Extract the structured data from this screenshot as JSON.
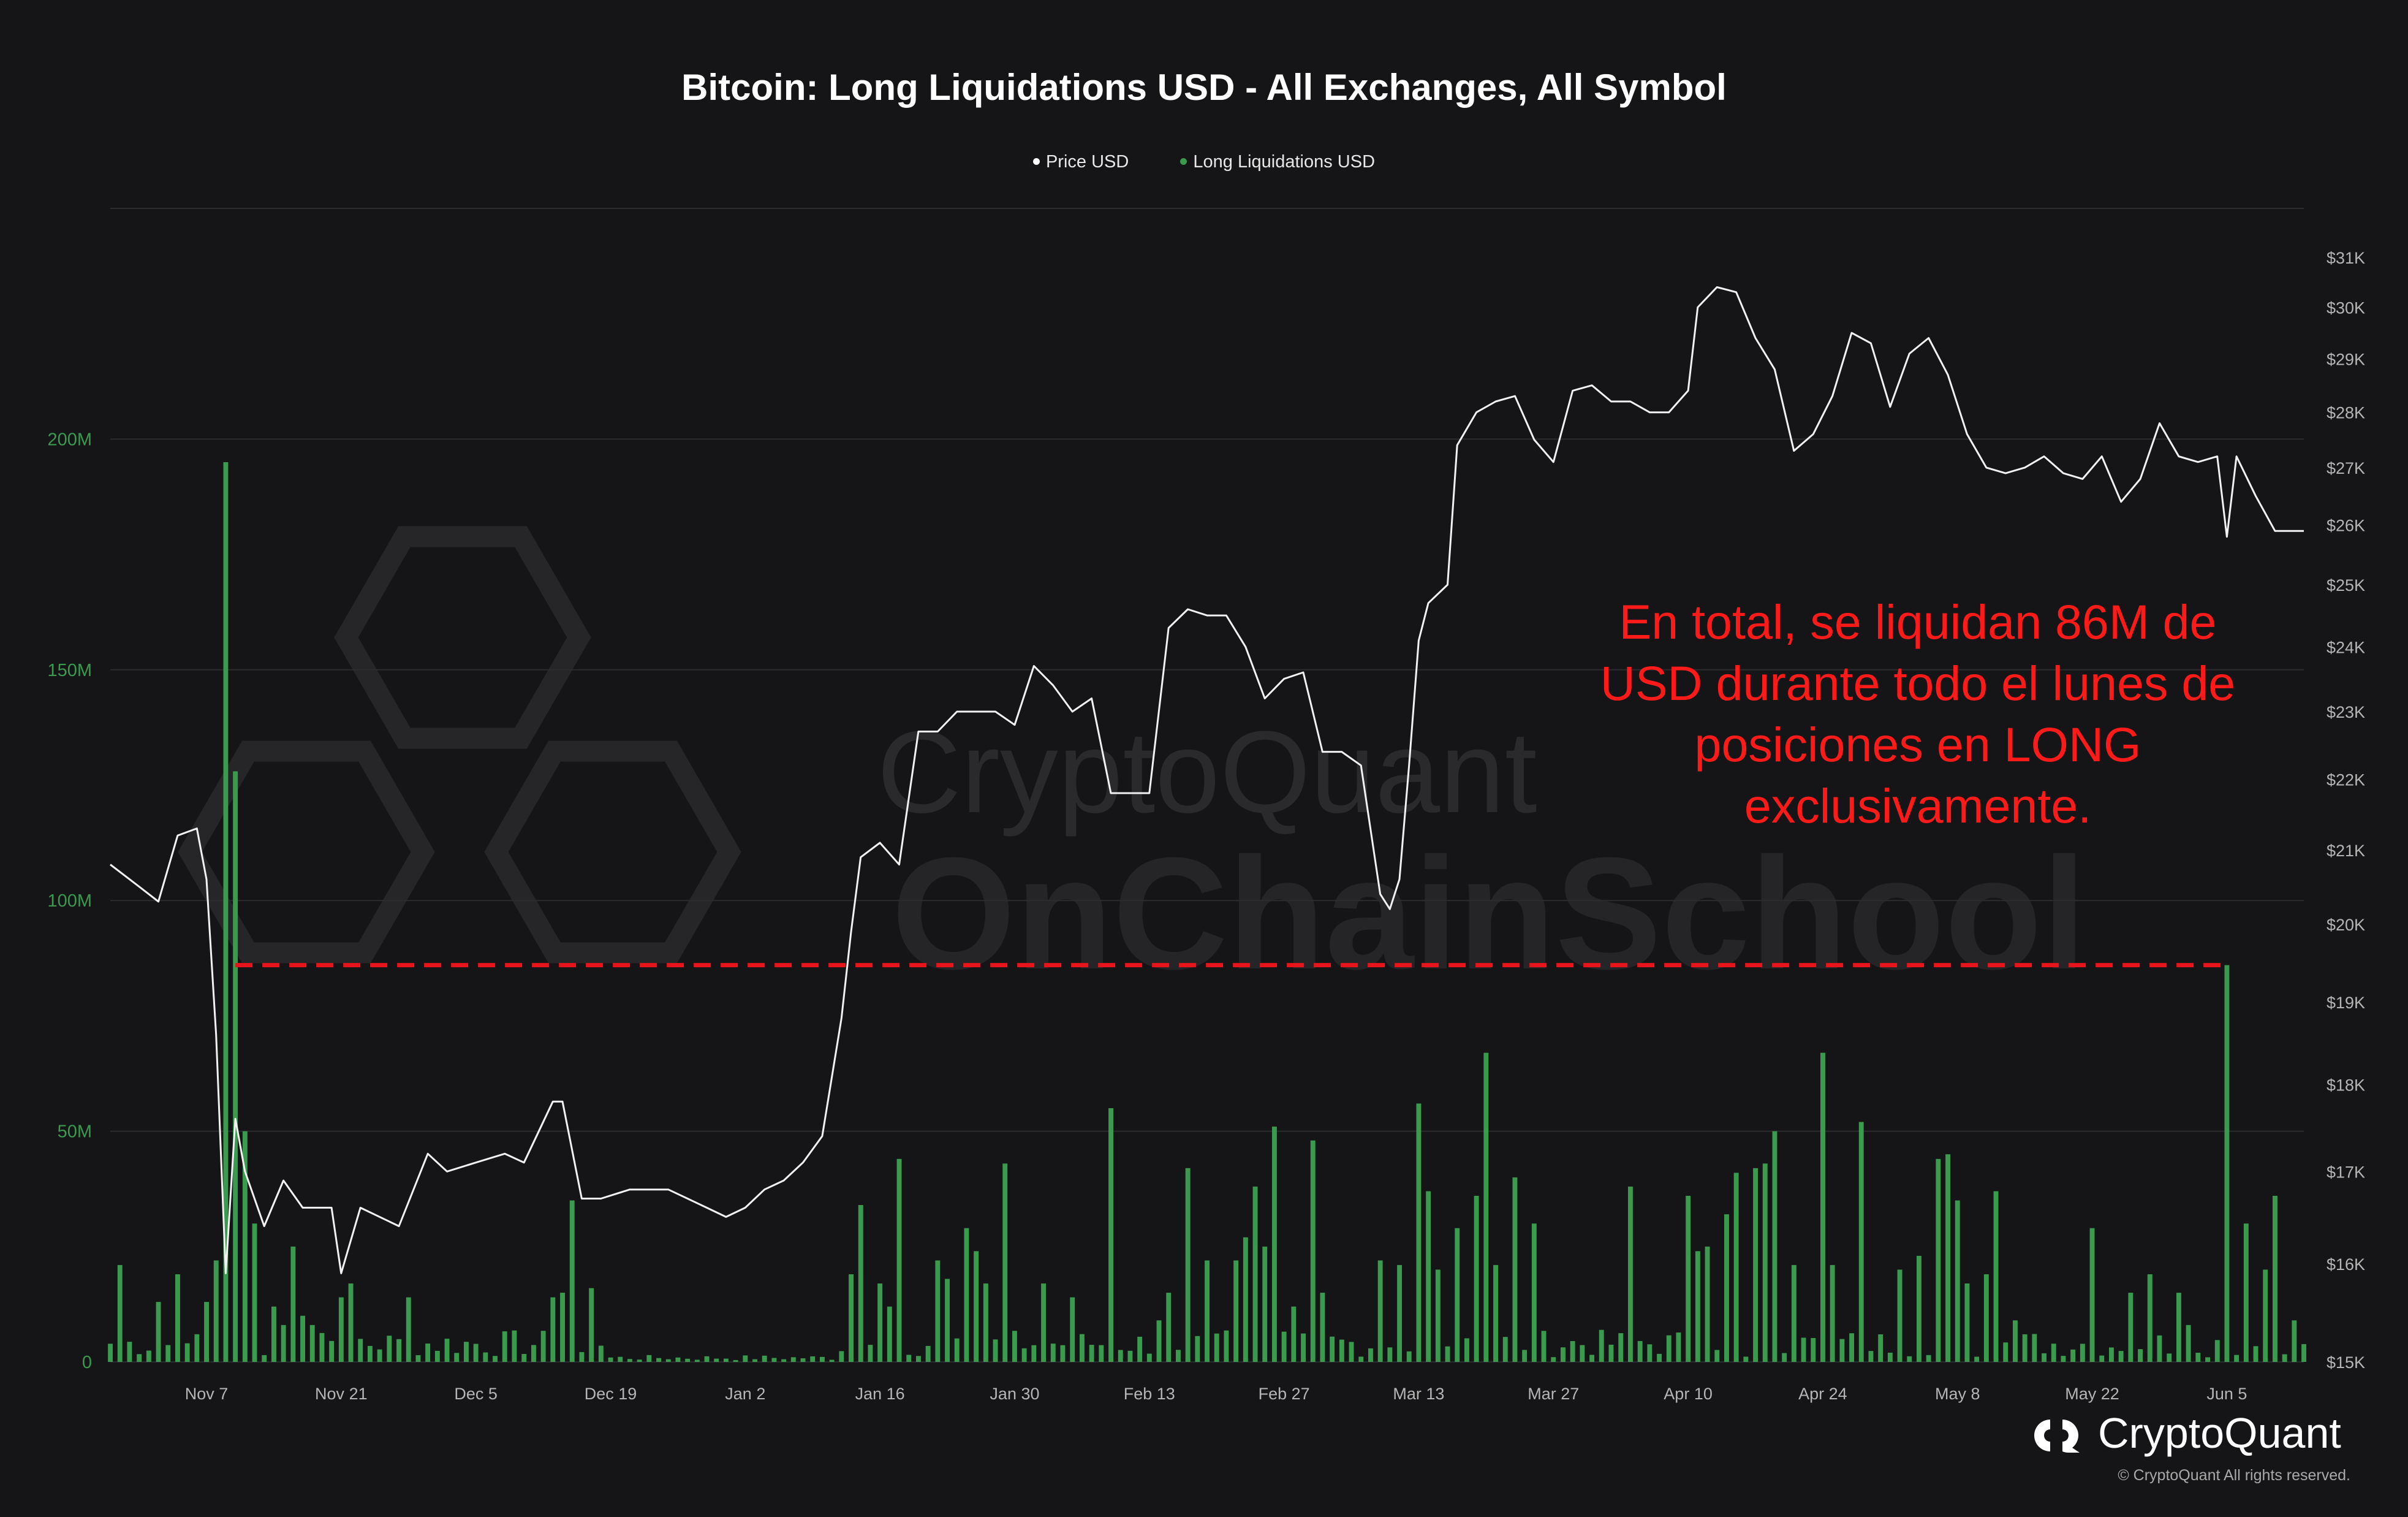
{
  "chart_data": {
    "type": "bar+line",
    "title": "Bitcoin: Long Liquidations USD - All Exchanges, All Symbol",
    "legend": [
      {
        "name": "Price USD",
        "color": "#ffffff"
      },
      {
        "name": "Long Liquidations USD",
        "color": "#3a9a4e"
      }
    ],
    "legend_position": "top-center",
    "grid": true,
    "left_axis": {
      "ticks": [
        "0",
        "50M",
        "100M",
        "150M",
        "200M"
      ],
      "tick_values": [
        0,
        50,
        100,
        150,
        200
      ],
      "range": [
        0,
        250
      ],
      "unit": "M USD",
      "color": "#3a9a4e"
    },
    "right_axis": {
      "ticks": [
        "$15K",
        "$16K",
        "$17K",
        "$18K",
        "$19K",
        "$20K",
        "$21K",
        "$22K",
        "$23K",
        "$24K",
        "$25K",
        "$26K",
        "$27K",
        "$28K",
        "$29K",
        "$30K",
        "$31K"
      ],
      "tick_values": [
        15,
        16,
        17,
        18,
        19,
        20,
        21,
        22,
        23,
        24,
        25,
        26,
        27,
        28,
        29,
        30,
        31
      ],
      "scale": "log",
      "unit": "K USD"
    },
    "x_axis": {
      "ticks": [
        "Nov 7",
        "Nov 21",
        "Dec 5",
        "Dec 19",
        "Jan 2",
        "Jan 16",
        "Jan 30",
        "Feb 13",
        "Feb 27",
        "Mar 13",
        "Mar 27",
        "Apr 10",
        "Apr 24",
        "May 8",
        "May 22",
        "Jun 5"
      ],
      "start": "2022-10-28",
      "end": "2023-06-13"
    },
    "price_series": {
      "name": "Price USD",
      "points": [
        [
          "2022-10-28",
          20.8
        ],
        [
          "2022-10-31",
          20.5
        ],
        [
          "2022-11-02",
          20.3
        ],
        [
          "2022-11-04",
          21.2
        ],
        [
          "2022-11-06",
          21.3
        ],
        [
          "2022-11-07",
          20.6
        ],
        [
          "2022-11-08",
          18.6
        ],
        [
          "2022-11-09",
          15.9
        ],
        [
          "2022-11-10",
          17.6
        ],
        [
          "2022-11-11",
          17.0
        ],
        [
          "2022-11-13",
          16.4
        ],
        [
          "2022-11-15",
          16.9
        ],
        [
          "2022-11-17",
          16.6
        ],
        [
          "2022-11-20",
          16.6
        ],
        [
          "2022-11-21",
          15.9
        ],
        [
          "2022-11-23",
          16.6
        ],
        [
          "2022-11-27",
          16.4
        ],
        [
          "2022-11-30",
          17.2
        ],
        [
          "2022-12-02",
          17.0
        ],
        [
          "2022-12-05",
          17.1
        ],
        [
          "2022-12-08",
          17.2
        ],
        [
          "2022-12-10",
          17.1
        ],
        [
          "2022-12-13",
          17.8
        ],
        [
          "2022-12-14",
          17.8
        ],
        [
          "2022-12-16",
          16.7
        ],
        [
          "2022-12-18",
          16.7
        ],
        [
          "2022-12-21",
          16.8
        ],
        [
          "2022-12-25",
          16.8
        ],
        [
          "2022-12-27",
          16.7
        ],
        [
          "2022-12-29",
          16.6
        ],
        [
          "2022-12-31",
          16.5
        ],
        [
          "2023-01-02",
          16.6
        ],
        [
          "2023-01-04",
          16.8
        ],
        [
          "2023-01-06",
          16.9
        ],
        [
          "2023-01-08",
          17.1
        ],
        [
          "2023-01-10",
          17.4
        ],
        [
          "2023-01-12",
          18.8
        ],
        [
          "2023-01-13",
          19.9
        ],
        [
          "2023-01-14",
          20.9
        ],
        [
          "2023-01-16",
          21.1
        ],
        [
          "2023-01-18",
          20.8
        ],
        [
          "2023-01-20",
          22.7
        ],
        [
          "2023-01-22",
          22.7
        ],
        [
          "2023-01-24",
          23.0
        ],
        [
          "2023-01-26",
          23.0
        ],
        [
          "2023-01-28",
          23.0
        ],
        [
          "2023-01-30",
          22.8
        ],
        [
          "2023-02-01",
          23.7
        ],
        [
          "2023-02-03",
          23.4
        ],
        [
          "2023-02-05",
          23.0
        ],
        [
          "2023-02-07",
          23.2
        ],
        [
          "2023-02-09",
          21.8
        ],
        [
          "2023-02-11",
          21.8
        ],
        [
          "2023-02-13",
          21.8
        ],
        [
          "2023-02-15",
          24.3
        ],
        [
          "2023-02-17",
          24.6
        ],
        [
          "2023-02-19",
          24.5
        ],
        [
          "2023-02-21",
          24.5
        ],
        [
          "2023-02-23",
          24.0
        ],
        [
          "2023-02-25",
          23.2
        ],
        [
          "2023-02-27",
          23.5
        ],
        [
          "2023-03-01",
          23.6
        ],
        [
          "2023-03-03",
          22.4
        ],
        [
          "2023-03-05",
          22.4
        ],
        [
          "2023-03-07",
          22.2
        ],
        [
          "2023-03-09",
          20.4
        ],
        [
          "2023-03-10",
          20.2
        ],
        [
          "2023-03-11",
          20.6
        ],
        [
          "2023-03-12",
          22.2
        ],
        [
          "2023-03-13",
          24.1
        ],
        [
          "2023-03-14",
          24.7
        ],
        [
          "2023-03-16",
          25.0
        ],
        [
          "2023-03-17",
          27.4
        ],
        [
          "2023-03-19",
          28.0
        ],
        [
          "2023-03-21",
          28.2
        ],
        [
          "2023-03-23",
          28.3
        ],
        [
          "2023-03-25",
          27.5
        ],
        [
          "2023-03-27",
          27.1
        ],
        [
          "2023-03-29",
          28.4
        ],
        [
          "2023-03-31",
          28.5
        ],
        [
          "2023-04-02",
          28.2
        ],
        [
          "2023-04-04",
          28.2
        ],
        [
          "2023-04-06",
          28.0
        ],
        [
          "2023-04-08",
          28.0
        ],
        [
          "2023-04-10",
          28.4
        ],
        [
          "2023-04-11",
          30.0
        ],
        [
          "2023-04-13",
          30.4
        ],
        [
          "2023-04-15",
          30.3
        ],
        [
          "2023-04-17",
          29.4
        ],
        [
          "2023-04-19",
          28.8
        ],
        [
          "2023-04-21",
          27.3
        ],
        [
          "2023-04-23",
          27.6
        ],
        [
          "2023-04-25",
          28.3
        ],
        [
          "2023-04-27",
          29.5
        ],
        [
          "2023-04-29",
          29.3
        ],
        [
          "2023-05-01",
          28.1
        ],
        [
          "2023-05-03",
          29.1
        ],
        [
          "2023-05-05",
          29.4
        ],
        [
          "2023-05-07",
          28.7
        ],
        [
          "2023-05-09",
          27.6
        ],
        [
          "2023-05-11",
          27.0
        ],
        [
          "2023-05-13",
          26.9
        ],
        [
          "2023-05-15",
          27.0
        ],
        [
          "2023-05-17",
          27.2
        ],
        [
          "2023-05-19",
          26.9
        ],
        [
          "2023-05-21",
          26.8
        ],
        [
          "2023-05-23",
          27.2
        ],
        [
          "2023-05-25",
          26.4
        ],
        [
          "2023-05-27",
          26.8
        ],
        [
          "2023-05-29",
          27.8
        ],
        [
          "2023-05-31",
          27.2
        ],
        [
          "2023-06-02",
          27.1
        ],
        [
          "2023-06-04",
          27.2
        ],
        [
          "2023-06-05",
          25.8
        ],
        [
          "2023-06-06",
          27.2
        ],
        [
          "2023-06-08",
          26.5
        ],
        [
          "2023-06-10",
          25.9
        ],
        [
          "2023-06-13",
          25.9
        ]
      ]
    },
    "liquidations_series": {
      "name": "Long Liquidations USD",
      "unit": "M USD",
      "points": [
        [
          "2022-10-29",
          21
        ],
        [
          "2022-11-02",
          13
        ],
        [
          "2022-11-04",
          19
        ],
        [
          "2022-11-06",
          6
        ],
        [
          "2022-11-07",
          13
        ],
        [
          "2022-11-08",
          22
        ],
        [
          "2022-11-09",
          195
        ],
        [
          "2022-11-10",
          128
        ],
        [
          "2022-11-11",
          50
        ],
        [
          "2022-11-12",
          30
        ],
        [
          "2022-11-14",
          12
        ],
        [
          "2022-11-15",
          8
        ],
        [
          "2022-11-16",
          25
        ],
        [
          "2022-11-17",
          10
        ],
        [
          "2022-11-18",
          8
        ],
        [
          "2022-11-21",
          14
        ],
        [
          "2022-11-22",
          17
        ],
        [
          "2022-11-23",
          5
        ],
        [
          "2022-11-28",
          14
        ],
        [
          "2022-12-13",
          14
        ],
        [
          "2022-12-14",
          15
        ],
        [
          "2022-12-15",
          35
        ],
        [
          "2022-12-17",
          16
        ],
        [
          "2023-01-13",
          19
        ],
        [
          "2023-01-14",
          34
        ],
        [
          "2023-01-16",
          17
        ],
        [
          "2023-01-17",
          12
        ],
        [
          "2023-01-18",
          44
        ],
        [
          "2023-01-22",
          22
        ],
        [
          "2023-01-23",
          18
        ],
        [
          "2023-01-25",
          29
        ],
        [
          "2023-01-26",
          24
        ],
        [
          "2023-01-27",
          17
        ],
        [
          "2023-01-29",
          43
        ],
        [
          "2023-02-02",
          17
        ],
        [
          "2023-02-05",
          14
        ],
        [
          "2023-02-09",
          55
        ],
        [
          "2023-02-14",
          9
        ],
        [
          "2023-02-15",
          15
        ],
        [
          "2023-02-17",
          42
        ],
        [
          "2023-02-19",
          22
        ],
        [
          "2023-02-22",
          22
        ],
        [
          "2023-02-23",
          27
        ],
        [
          "2023-02-24",
          38
        ],
        [
          "2023-02-25",
          25
        ],
        [
          "2023-02-26",
          51
        ],
        [
          "2023-02-28",
          12
        ],
        [
          "2023-03-02",
          48
        ],
        [
          "2023-03-03",
          15
        ],
        [
          "2023-03-09",
          22
        ],
        [
          "2023-03-11",
          21
        ],
        [
          "2023-03-13",
          56
        ],
        [
          "2023-03-14",
          37
        ],
        [
          "2023-03-15",
          20
        ],
        [
          "2023-03-17",
          29
        ],
        [
          "2023-03-19",
          36
        ],
        [
          "2023-03-20",
          67
        ],
        [
          "2023-03-21",
          21
        ],
        [
          "2023-03-23",
          40
        ],
        [
          "2023-03-25",
          30
        ],
        [
          "2023-04-04",
          38
        ],
        [
          "2023-04-10",
          36
        ],
        [
          "2023-04-11",
          24
        ],
        [
          "2023-04-12",
          25
        ],
        [
          "2023-04-14",
          32
        ],
        [
          "2023-04-15",
          41
        ],
        [
          "2023-04-17",
          42
        ],
        [
          "2023-04-18",
          43
        ],
        [
          "2023-04-19",
          50
        ],
        [
          "2023-04-21",
          21
        ],
        [
          "2023-04-24",
          67
        ],
        [
          "2023-04-25",
          21
        ],
        [
          "2023-04-28",
          52
        ],
        [
          "2023-05-02",
          20
        ],
        [
          "2023-05-04",
          23
        ],
        [
          "2023-05-06",
          44
        ],
        [
          "2023-05-07",
          45
        ],
        [
          "2023-05-08",
          35
        ],
        [
          "2023-05-09",
          17
        ],
        [
          "2023-05-11",
          19
        ],
        [
          "2023-05-12",
          37
        ],
        [
          "2023-05-14",
          9
        ],
        [
          "2023-05-22",
          29
        ],
        [
          "2023-05-26",
          15
        ],
        [
          "2023-05-28",
          19
        ],
        [
          "2023-05-31",
          15
        ],
        [
          "2023-06-01",
          8
        ],
        [
          "2023-06-05",
          86
        ],
        [
          "2023-06-07",
          30
        ],
        [
          "2023-06-09",
          20
        ],
        [
          "2023-06-10",
          36
        ],
        [
          "2023-06-12",
          9
        ]
      ],
      "baseline_noise_note": ""
    },
    "reference_line": {
      "value": 86,
      "style": "dashed",
      "color": "#e8141b",
      "from": "2022-11-10",
      "to": "2023-06-05"
    },
    "annotation": "En total, se liquidan 86M de USD durante todo el lunes de posiciones en LONG exclusivamente."
  },
  "watermark": [
    "CryptoQuant",
    "OnChainSchool"
  ],
  "brand": {
    "name": "CryptoQuant",
    "copyright": "© CryptoQuant All rights reserved."
  }
}
